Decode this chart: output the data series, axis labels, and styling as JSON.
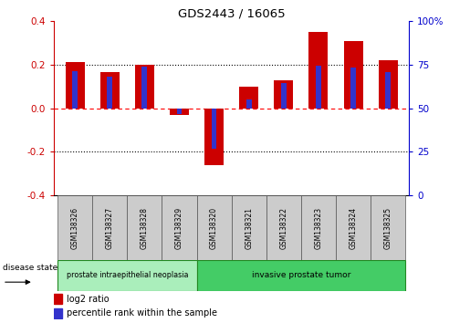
{
  "title": "GDS2443 / 16065",
  "samples": [
    "GSM138326",
    "GSM138327",
    "GSM138328",
    "GSM138329",
    "GSM138320",
    "GSM138321",
    "GSM138322",
    "GSM138323",
    "GSM138324",
    "GSM138325"
  ],
  "log2_ratio": [
    0.21,
    0.165,
    0.2,
    -0.03,
    -0.26,
    0.1,
    0.13,
    0.35,
    0.31,
    0.22
  ],
  "percentile_rank": [
    0.17,
    0.145,
    0.19,
    -0.025,
    -0.185,
    0.04,
    0.115,
    0.195,
    0.185,
    0.165
  ],
  "ylim": [
    -0.4,
    0.4
  ],
  "yticks_left": [
    -0.4,
    -0.2,
    0.0,
    0.2,
    0.4
  ],
  "yticks_right": [
    0,
    25,
    50,
    75,
    100
  ],
  "bar_color_red": "#cc0000",
  "bar_color_blue": "#3333cc",
  "red_bar_width": 0.55,
  "blue_bar_width": 0.15,
  "group1_label": "prostate intraepithelial neoplasia",
  "group2_label": "invasive prostate tumor",
  "group1_color": "#aaeebb",
  "group2_color": "#44cc66",
  "group1_n": 4,
  "group2_n": 6,
  "disease_state_label": "disease state",
  "legend_red_label": "log2 ratio",
  "legend_blue_label": "percentile rank within the sample",
  "tick_color_left": "#cc0000",
  "tick_color_right": "#0000cc"
}
